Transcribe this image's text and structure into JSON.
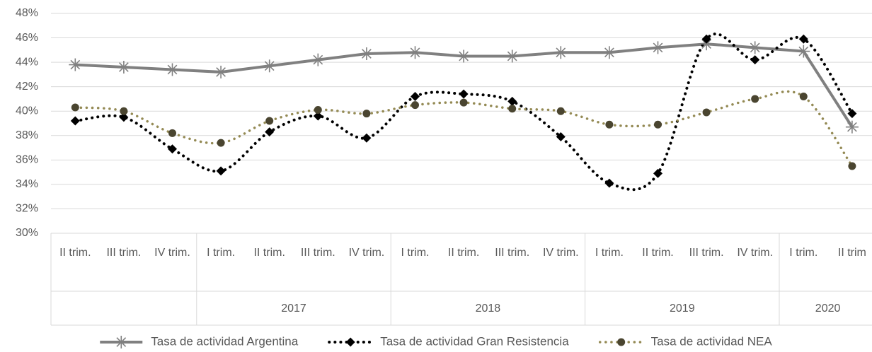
{
  "chart_data": {
    "type": "line",
    "categories": [
      "II trim.",
      "III trim.",
      "IV trim.",
      "I trim.",
      "II trim.",
      "III trim.",
      "IV trim.",
      "I trim.",
      "II trim.",
      "III trim.",
      "IV trim.",
      "I trim.",
      "II trim.",
      "III trim.",
      "IV trim.",
      "I trim.",
      "II trim"
    ],
    "years": [
      null,
      null,
      null,
      "2017",
      "2017",
      "2017",
      "2017",
      "2018",
      "2018",
      "2018",
      "2018",
      "2019",
      "2019",
      "2019",
      "2019",
      "2020",
      "2020"
    ],
    "ylim": [
      30,
      48
    ],
    "yticks": [
      {
        "value": 30,
        "label": "30%"
      },
      {
        "value": 32,
        "label": "32%"
      },
      {
        "value": 34,
        "label": "34%"
      },
      {
        "value": 36,
        "label": "36%"
      },
      {
        "value": 38,
        "label": "38%"
      },
      {
        "value": 40,
        "label": "40%"
      },
      {
        "value": 42,
        "label": "42%"
      },
      {
        "value": 44,
        "label": "44%"
      },
      {
        "value": 46,
        "label": "46%"
      },
      {
        "value": 48,
        "label": "48%"
      }
    ],
    "grid": true,
    "legend": "bottom",
    "series": [
      {
        "name": "Tasa de actividad Argentina",
        "color": "#808080",
        "marker_color": "#808080",
        "marker": "star",
        "dash": "solid",
        "smooth": false,
        "values": [
          43.8,
          43.6,
          43.4,
          43.2,
          43.7,
          44.2,
          44.7,
          44.8,
          44.5,
          44.5,
          44.8,
          44.8,
          45.2,
          45.5,
          45.2,
          44.9,
          38.7
        ]
      },
      {
        "name": "Tasa de actividad Gran Resistencia",
        "color": "#000000",
        "marker_color": "#000000",
        "marker": "diamond",
        "dash": "dotted",
        "smooth": true,
        "values": [
          39.2,
          39.5,
          36.9,
          35.1,
          38.3,
          39.6,
          37.8,
          41.2,
          41.4,
          40.8,
          37.9,
          34.1,
          34.9,
          45.9,
          44.2,
          45.9,
          39.8
        ]
      },
      {
        "name": "Tasa de actividad NEA",
        "color": "#948a54",
        "marker_color": "#4a4530",
        "marker": "circle",
        "dash": "dotted",
        "smooth": true,
        "values": [
          40.3,
          40.0,
          38.2,
          37.4,
          39.2,
          40.1,
          39.8,
          40.5,
          40.7,
          40.2,
          40.0,
          38.9,
          38.9,
          39.9,
          41.0,
          41.2,
          35.5
        ]
      }
    ]
  }
}
